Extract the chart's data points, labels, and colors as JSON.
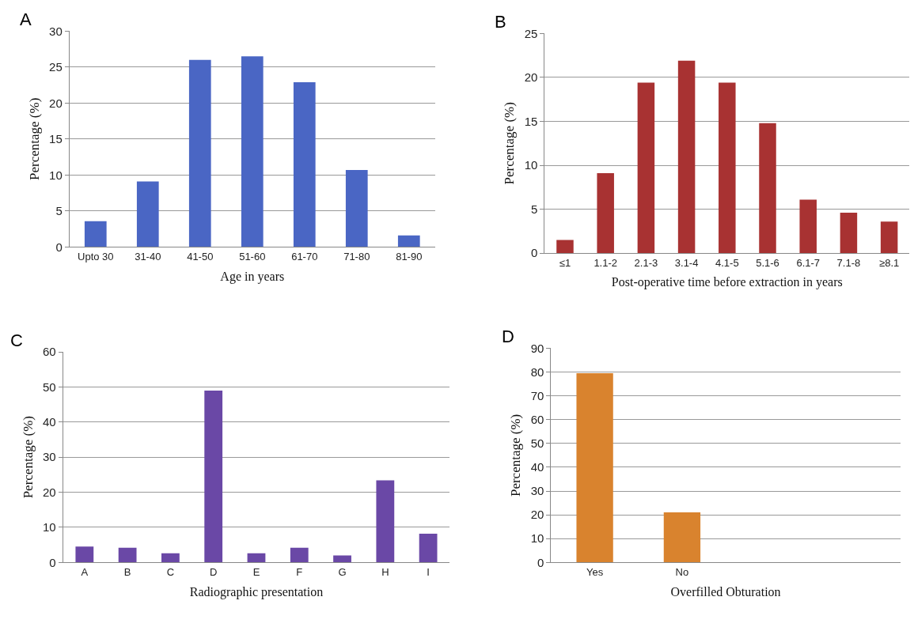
{
  "chart_data": [
    {
      "type": "bar",
      "title": "A",
      "xlabel": "Age in years",
      "ylabel": "Percentage (%)",
      "categories": [
        "Upto 30",
        "31-40",
        "41-50",
        "51-60",
        "61-70",
        "71-80",
        "81-90"
      ],
      "values": [
        3.6,
        9.1,
        26,
        26.5,
        22.9,
        10.7,
        1.6
      ],
      "color": "#4a66c4",
      "ylim": [
        0,
        30
      ],
      "yticks": [
        0,
        5,
        10,
        15,
        20,
        25,
        30
      ],
      "grid": "y"
    },
    {
      "type": "bar",
      "title": "B",
      "xlabel": "Post-operative time before extraction in years",
      "ylabel": "Percentage (%)",
      "categories": [
        "≤1",
        "1.1-2",
        "2.1-3",
        "3.1-4",
        "4.1-5",
        "5.1-6",
        "6.1-7",
        "7.1-8",
        "≥8.1"
      ],
      "values": [
        1.5,
        9.1,
        19.4,
        21.9,
        19.4,
        14.8,
        6.1,
        4.6,
        3.6
      ],
      "color": "#a83232",
      "ylim": [
        0,
        25
      ],
      "yticks": [
        0,
        5,
        10,
        15,
        20,
        25
      ],
      "grid": "y"
    },
    {
      "type": "bar",
      "title": "C",
      "xlabel": "Radiographic presentation",
      "ylabel": "Percentage (%)",
      "categories": [
        "A",
        "B",
        "C",
        "D",
        "E",
        "F",
        "G",
        "H",
        "I"
      ],
      "values": [
        4.5,
        4.2,
        2.6,
        49,
        2.6,
        4.2,
        2.0,
        23.4,
        8.2
      ],
      "color": "#6a48a6",
      "ylim": [
        0,
        60
      ],
      "yticks": [
        0,
        10,
        20,
        30,
        40,
        50,
        60
      ],
      "grid": "y"
    },
    {
      "type": "bar",
      "title": "D",
      "xlabel": "Overfilled Obturation",
      "ylabel": "Percentage (%)",
      "categories": [
        "Yes",
        "No",
        null,
        null
      ],
      "values": [
        79.5,
        21,
        null,
        null
      ],
      "color": "#d9832e",
      "ylim": [
        0,
        90
      ],
      "yticks": [
        0,
        10,
        20,
        30,
        40,
        50,
        60,
        70,
        80,
        90
      ],
      "grid": "y"
    }
  ]
}
